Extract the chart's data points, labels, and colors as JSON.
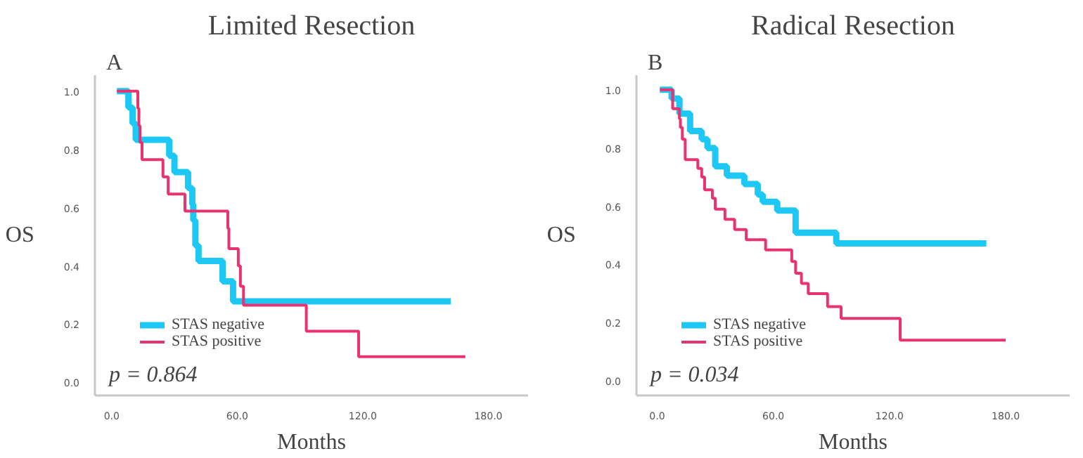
{
  "chart_data": [
    {
      "type": "step",
      "title": "Limited Resection",
      "xlabel": "Months",
      "ylabel": "OS",
      "annotations": [
        "A",
        "p = 0.864"
      ],
      "xlim": [
        -8,
        199
      ],
      "ylim": [
        -0.045,
        1.055
      ],
      "xticks": [
        {
          "value": 0,
          "label": "0.0"
        },
        {
          "value": 60,
          "label": "60.0"
        },
        {
          "value": 120,
          "label": "120.0"
        },
        {
          "value": 180,
          "label": "180.0"
        }
      ],
      "yticks": [
        {
          "value": 0,
          "label": "0.0"
        },
        {
          "value": 0.2,
          "label": "0.2"
        },
        {
          "value": 0.4,
          "label": "0.4"
        },
        {
          "value": 0.6,
          "label": "0.6"
        },
        {
          "value": 0.8,
          "label": "0.8"
        },
        {
          "value": 1.0,
          "label": "1.0"
        }
      ],
      "grid": false,
      "legend": "bottom left",
      "series": [
        {
          "name": "STAS negative",
          "color": "#1ec8f5",
          "x": [
            2.5,
            8,
            10,
            11.5,
            27.5,
            30,
            36.5,
            38.5,
            39,
            40,
            41.5,
            53,
            58,
            162
          ],
          "values": [
            1.0,
            0.944,
            0.889,
            0.833,
            0.778,
            0.722,
            0.667,
            0.611,
            0.556,
            0.47,
            0.417,
            0.347,
            0.278,
            0.278
          ]
        },
        {
          "name": "STAS positive",
          "color": "#e8336e",
          "x": [
            2.5,
            12.5,
            13,
            13.5,
            14.5,
            24.5,
            27,
            35,
            55.5,
            56,
            60.5,
            61.5,
            63,
            93,
            118,
            169
          ],
          "values": [
            1.0,
            0.941,
            0.882,
            0.824,
            0.765,
            0.706,
            0.647,
            0.588,
            0.529,
            0.459,
            0.4,
            0.33,
            0.265,
            0.176,
            0.088,
            0.088
          ]
        }
      ]
    },
    {
      "type": "step",
      "title": "Radical Resection",
      "xlabel": "Months",
      "ylabel": "OS",
      "annotations": [
        "B",
        "p = 0.034"
      ],
      "xlim": [
        -10.7,
        213
      ],
      "ylim": [
        -0.05,
        1.05
      ],
      "xticks": [
        {
          "value": 0,
          "label": "0.0"
        },
        {
          "value": 60,
          "label": "60.0"
        },
        {
          "value": 120,
          "label": "120.0"
        },
        {
          "value": 180,
          "label": "180.0"
        }
      ],
      "yticks": [
        {
          "value": 0,
          "label": "0.0"
        },
        {
          "value": 0.2,
          "label": "0.2"
        },
        {
          "value": 0.4,
          "label": "0.4"
        },
        {
          "value": 0.6,
          "label": "0.6"
        },
        {
          "value": 0.8,
          "label": "0.8"
        },
        {
          "value": 1.0,
          "label": "1.0"
        }
      ],
      "grid": false,
      "legend": "bottom left",
      "series": [
        {
          "name": "STAS negative",
          "color": "#1ec8f5",
          "x": [
            1.4,
            7.5,
            11.5,
            17,
            23,
            26,
            30,
            36,
            45,
            52,
            54.5,
            62,
            71.5,
            92.5,
            170
          ],
          "values": [
            1.0,
            0.97,
            0.918,
            0.858,
            0.83,
            0.8,
            0.737,
            0.705,
            0.676,
            0.64,
            0.615,
            0.585,
            0.509,
            0.472,
            0.472
          ]
        },
        {
          "name": "STAS positive",
          "color": "#e8336e",
          "x": [
            1.4,
            8,
            11.5,
            12,
            13,
            14.5,
            21,
            23,
            24.5,
            28.5,
            30,
            35,
            40,
            46,
            56,
            69.5,
            71.5,
            74.5,
            78,
            88,
            95,
            125.5,
            180
          ],
          "values": [
            1.0,
            0.935,
            0.9,
            0.87,
            0.83,
            0.76,
            0.73,
            0.7,
            0.656,
            0.627,
            0.59,
            0.555,
            0.52,
            0.485,
            0.45,
            0.41,
            0.37,
            0.335,
            0.3,
            0.255,
            0.215,
            0.14,
            0.14
          ]
        }
      ]
    }
  ]
}
